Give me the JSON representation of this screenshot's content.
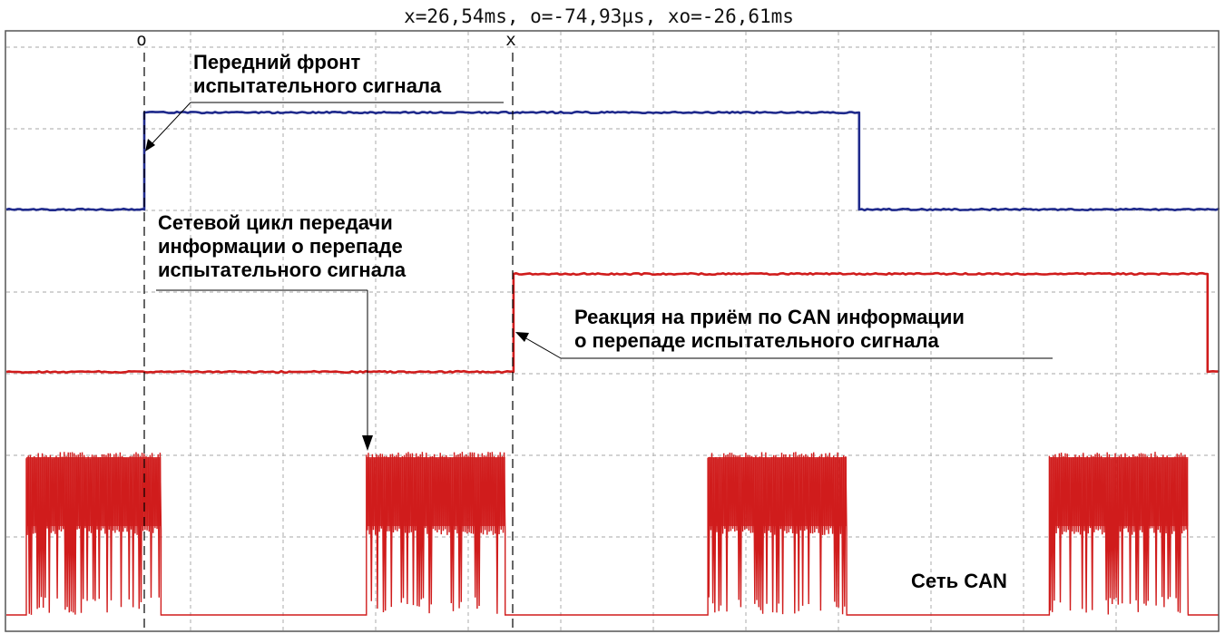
{
  "header": {
    "readout": "x=26,54ms, o=-74,93µs, xo=-26,61ms"
  },
  "cursors": {
    "o_label": "o",
    "x_label": "x"
  },
  "annotations": {
    "front": [
      "Передний фронт",
      "испытательного сигнала"
    ],
    "cycle": [
      "Сетевой цикл передачи",
      "информации о перепаде",
      "испытательного сигнала"
    ],
    "reaction": [
      "Реакция на приём по CAN информации",
      "о перепаде испытательного сигнала"
    ],
    "can": [
      "Сеть CAN"
    ]
  },
  "colors": {
    "test_signal": "#1f2a8c",
    "reaction_signal": "#d01c1c",
    "can_bus": "#d01c1c",
    "grid": "#b9b9b9",
    "frame": "#555555"
  },
  "chart_data": {
    "type": "line",
    "x_unit": "ms",
    "cursor_x": 26.54,
    "cursor_o": 0,
    "series": [
      {
        "key": "test_signal",
        "steps": [
          [
            -9.5,
            0
          ],
          [
            0,
            1
          ],
          [
            51.5,
            0
          ],
          [
            77.5,
            0
          ]
        ]
      },
      {
        "key": "reaction_signal",
        "steps": [
          [
            -9.5,
            0
          ],
          [
            26.6,
            1
          ],
          [
            76.6,
            0
          ],
          [
            77.5,
            0
          ]
        ]
      },
      {
        "key": "can_bus",
        "bursts": [
          [
            -8.5,
            1.2
          ],
          [
            16.0,
            26.0
          ],
          [
            40.6,
            50.6
          ],
          [
            65.2,
            75.2
          ]
        ]
      }
    ]
  }
}
